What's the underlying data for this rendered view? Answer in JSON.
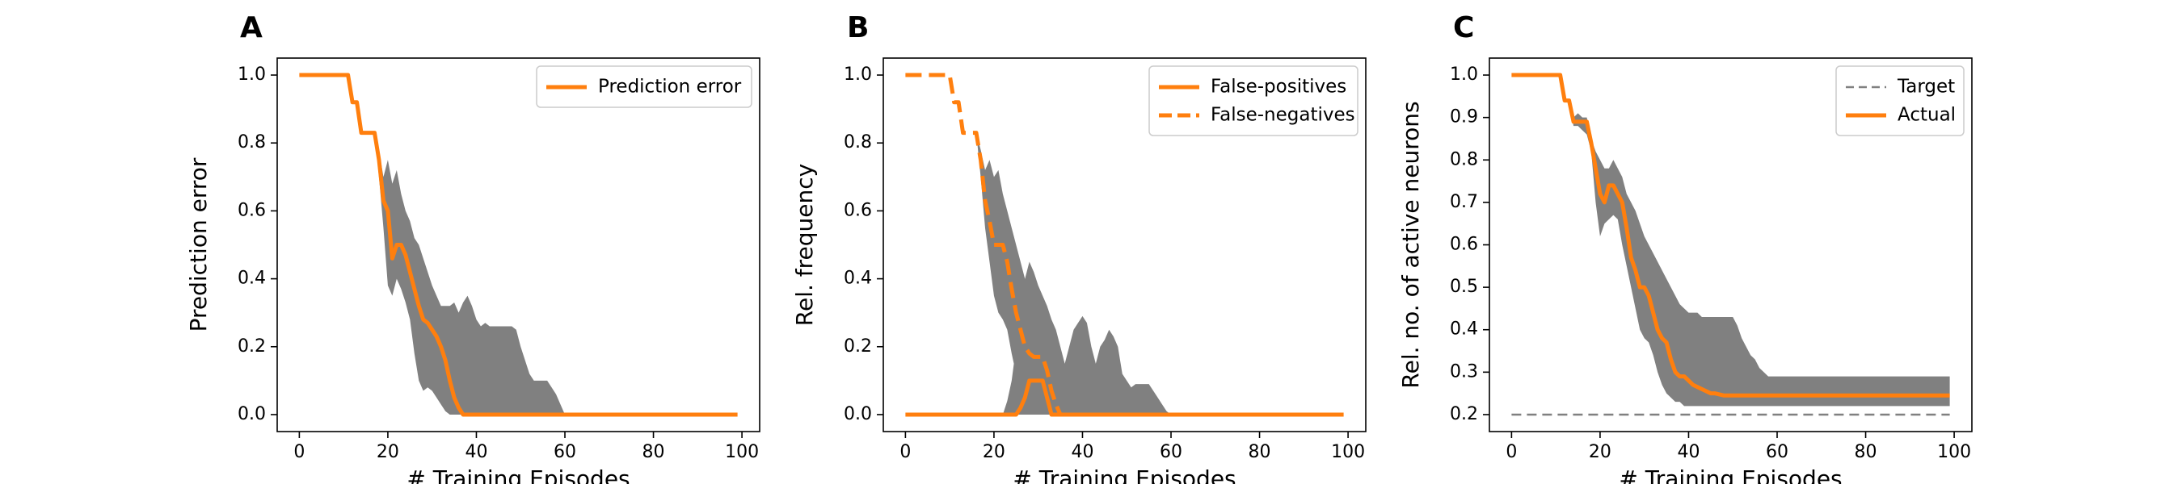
{
  "figure": {
    "colors": {
      "accent": "#ff7f0e",
      "band": "#808080",
      "target": "#808080",
      "axis": "#000000"
    }
  },
  "chart_data": [
    {
      "type": "line",
      "panel_label": "A",
      "xlabel": "# Training Episodes",
      "ylabel": "Prediction error",
      "xlim": [
        -5,
        104
      ],
      "ylim": [
        -0.05,
        1.05
      ],
      "xticks": [
        0,
        20,
        40,
        60,
        80,
        100
      ],
      "xtick_labels": [
        "0",
        "20",
        "40",
        "60",
        "80",
        "100"
      ],
      "yticks": [
        0,
        0.2,
        0.4,
        0.6,
        0.8,
        1.0
      ],
      "ytick_labels": [
        "0.0",
        "0.2",
        "0.4",
        "0.6",
        "0.8",
        "1.0"
      ],
      "legend": {
        "position": "top-right"
      },
      "series": [
        {
          "name": "Prediction error",
          "style": "solid",
          "x": [
            0,
            11,
            12,
            13,
            14,
            15,
            16,
            17,
            18,
            19,
            20,
            21,
            22,
            23,
            24,
            25,
            26,
            27,
            28,
            29,
            30,
            31,
            32,
            33,
            34,
            35,
            36,
            37,
            38,
            39,
            40,
            99
          ],
          "y": [
            1.0,
            1.0,
            0.92,
            0.92,
            0.83,
            0.83,
            0.83,
            0.83,
            0.75,
            0.63,
            0.6,
            0.46,
            0.5,
            0.5,
            0.47,
            0.42,
            0.37,
            0.32,
            0.28,
            0.27,
            0.25,
            0.23,
            0.2,
            0.16,
            0.1,
            0.05,
            0.02,
            0.0,
            0.0,
            0.0,
            0.0,
            0.0
          ]
        }
      ],
      "band": {
        "x": [
          0,
          11,
          12,
          13,
          14,
          15,
          16,
          17,
          18,
          19,
          20,
          21,
          22,
          23,
          24,
          25,
          26,
          27,
          28,
          29,
          30,
          31,
          32,
          33,
          34,
          35,
          36,
          37,
          38,
          39,
          40,
          41,
          42,
          43,
          44,
          45,
          46,
          47,
          48,
          49,
          50,
          51,
          52,
          53,
          54,
          55,
          56,
          57,
          58,
          59,
          60,
          99
        ],
        "upper": [
          1.0,
          1.0,
          0.92,
          0.92,
          0.83,
          0.83,
          0.83,
          0.83,
          0.78,
          0.7,
          0.75,
          0.68,
          0.72,
          0.65,
          0.6,
          0.57,
          0.52,
          0.5,
          0.46,
          0.42,
          0.38,
          0.35,
          0.32,
          0.32,
          0.32,
          0.33,
          0.3,
          0.33,
          0.35,
          0.32,
          0.28,
          0.26,
          0.27,
          0.26,
          0.26,
          0.26,
          0.26,
          0.26,
          0.26,
          0.25,
          0.2,
          0.16,
          0.12,
          0.1,
          0.1,
          0.1,
          0.1,
          0.08,
          0.06,
          0.03,
          0.0,
          0.0
        ],
        "lower": [
          1.0,
          1.0,
          0.92,
          0.92,
          0.83,
          0.83,
          0.83,
          0.83,
          0.7,
          0.55,
          0.38,
          0.35,
          0.4,
          0.37,
          0.33,
          0.28,
          0.18,
          0.1,
          0.07,
          0.08,
          0.07,
          0.05,
          0.03,
          0.01,
          0.0,
          0.0,
          0.0,
          0.0,
          0.0,
          0.0,
          0.0,
          0.0,
          0.0,
          0.0,
          0.0,
          0.0,
          0.0,
          0.0,
          0.0,
          0.0,
          0.0,
          0.0,
          0.0,
          0.0,
          0.0,
          0.0,
          0.0,
          0.0,
          0.0,
          0.0,
          0.0,
          0.0
        ]
      }
    },
    {
      "type": "line",
      "panel_label": "B",
      "xlabel": "# Training Episodes",
      "ylabel": "Rel. frequency",
      "xlim": [
        -5,
        104
      ],
      "ylim": [
        -0.05,
        1.05
      ],
      "xticks": [
        0,
        20,
        40,
        60,
        80,
        100
      ],
      "xtick_labels": [
        "0",
        "20",
        "40",
        "60",
        "80",
        "100"
      ],
      "yticks": [
        0,
        0.2,
        0.4,
        0.6,
        0.8,
        1.0
      ],
      "ytick_labels": [
        "0.0",
        "0.2",
        "0.4",
        "0.6",
        "0.8",
        "1.0"
      ],
      "legend": {
        "position": "top-right"
      },
      "series": [
        {
          "name": "False-positives",
          "style": "solid",
          "x": [
            0,
            24,
            25,
            26,
            27,
            28,
            29,
            30,
            31,
            32,
            33,
            34,
            99
          ],
          "y": [
            0.0,
            0.0,
            0.0,
            0.02,
            0.05,
            0.1,
            0.1,
            0.1,
            0.1,
            0.05,
            0.0,
            0.0,
            0.0
          ],
          "band": {
            "x": [
              0,
              22,
              23,
              24,
              25,
              26,
              27,
              28,
              29,
              30,
              31,
              32,
              33,
              34,
              35,
              36,
              37,
              38,
              39,
              40,
              41,
              42,
              43,
              44,
              45,
              46,
              47,
              48,
              49,
              50,
              51,
              52,
              53,
              54,
              55,
              56,
              57,
              58,
              59,
              60,
              99
            ],
            "upper": [
              0.0,
              0.0,
              0.04,
              0.1,
              0.2,
              0.32,
              0.4,
              0.45,
              0.42,
              0.38,
              0.35,
              0.32,
              0.28,
              0.25,
              0.2,
              0.15,
              0.2,
              0.25,
              0.27,
              0.29,
              0.27,
              0.2,
              0.15,
              0.2,
              0.22,
              0.25,
              0.23,
              0.2,
              0.12,
              0.1,
              0.08,
              0.09,
              0.09,
              0.09,
              0.09,
              0.07,
              0.05,
              0.03,
              0.01,
              0.0,
              0.0
            ],
            "lower": [
              0.0,
              0.0,
              0.0,
              0.0,
              0.0,
              0.0,
              0.0,
              0.0,
              0.0,
              0.0,
              0.0,
              0.0,
              0.0,
              0.0,
              0.0,
              0.0,
              0.0,
              0.0,
              0.0,
              0.0,
              0.0,
              0.0,
              0.0,
              0.0,
              0.0,
              0.0,
              0.0,
              0.0,
              0.0,
              0.0,
              0.0,
              0.0,
              0.0,
              0.0,
              0.0,
              0.0,
              0.0,
              0.0,
              0.0,
              0.0,
              0.0
            ]
          }
        },
        {
          "name": "False-negatives",
          "style": "dashed",
          "x": [
            0,
            10,
            11,
            12,
            13,
            14,
            15,
            16,
            17,
            18,
            19,
            20,
            21,
            22,
            23,
            24,
            25,
            26,
            27,
            28,
            29,
            30,
            31,
            32,
            33,
            34,
            35,
            36,
            37
          ],
          "y": [
            1.0,
            1.0,
            0.92,
            0.92,
            0.83,
            0.83,
            0.83,
            0.83,
            0.75,
            0.63,
            0.57,
            0.5,
            0.5,
            0.5,
            0.45,
            0.37,
            0.3,
            0.25,
            0.2,
            0.18,
            0.17,
            0.17,
            0.17,
            0.13,
            0.07,
            0.03,
            0.0,
            0.0,
            0.0
          ],
          "band": {
            "x": [
              0,
              10,
              11,
              12,
              13,
              14,
              15,
              16,
              17,
              18,
              19,
              20,
              21,
              22,
              23,
              24,
              25,
              26,
              27,
              28,
              29,
              30,
              31,
              32,
              33,
              34,
              35,
              36,
              37
            ],
            "upper": [
              1.0,
              1.0,
              0.92,
              0.92,
              0.83,
              0.83,
              0.83,
              0.83,
              0.78,
              0.72,
              0.75,
              0.7,
              0.72,
              0.65,
              0.6,
              0.55,
              0.5,
              0.45,
              0.4,
              0.35,
              0.32,
              0.3,
              0.25,
              0.2,
              0.14,
              0.08,
              0.02,
              0.0,
              0.0
            ],
            "lower": [
              1.0,
              1.0,
              0.92,
              0.92,
              0.83,
              0.83,
              0.83,
              0.83,
              0.7,
              0.55,
              0.45,
              0.35,
              0.3,
              0.28,
              0.25,
              0.18,
              0.12,
              0.08,
              0.05,
              0.03,
              0.02,
              0.01,
              0.0,
              0.0,
              0.0,
              0.0,
              0.0,
              0.0,
              0.0
            ]
          }
        }
      ]
    },
    {
      "type": "line",
      "panel_label": "C",
      "xlabel": "# Training Episodes",
      "ylabel": "Rel. no. of active neurons",
      "xlim": [
        -5,
        104
      ],
      "ylim": [
        0.16,
        1.04
      ],
      "xticks": [
        0,
        20,
        40,
        60,
        80,
        100
      ],
      "xtick_labels": [
        "0",
        "20",
        "40",
        "60",
        "80",
        "100"
      ],
      "yticks": [
        0.2,
        0.3,
        0.4,
        0.5,
        0.6,
        0.7,
        0.8,
        0.9,
        1.0
      ],
      "ytick_labels": [
        "0.2",
        "0.3",
        "0.4",
        "0.5",
        "0.6",
        "0.7",
        "0.8",
        "0.9",
        "1.0"
      ],
      "legend": {
        "position": "top-right"
      },
      "series": [
        {
          "name": "Target",
          "style": "dashed-thin",
          "x": [
            0,
            99
          ],
          "y": [
            0.2,
            0.2
          ]
        },
        {
          "name": "Actual",
          "style": "solid",
          "x": [
            0,
            11,
            12,
            13,
            14,
            15,
            16,
            17,
            18,
            19,
            20,
            21,
            22,
            23,
            24,
            25,
            26,
            27,
            28,
            29,
            30,
            31,
            32,
            33,
            34,
            35,
            36,
            37,
            38,
            39,
            40,
            41,
            42,
            43,
            44,
            45,
            46,
            48,
            50,
            52,
            54,
            56,
            58,
            60,
            99
          ],
          "y": [
            1.0,
            1.0,
            0.94,
            0.94,
            0.89,
            0.89,
            0.89,
            0.89,
            0.84,
            0.78,
            0.72,
            0.7,
            0.74,
            0.74,
            0.72,
            0.7,
            0.64,
            0.57,
            0.54,
            0.5,
            0.5,
            0.48,
            0.44,
            0.4,
            0.38,
            0.37,
            0.33,
            0.3,
            0.29,
            0.29,
            0.28,
            0.27,
            0.265,
            0.26,
            0.255,
            0.25,
            0.25,
            0.245,
            0.245,
            0.245,
            0.245,
            0.245,
            0.245,
            0.245,
            0.245
          ]
        }
      ],
      "band": {
        "x": [
          0,
          11,
          12,
          13,
          14,
          15,
          16,
          17,
          18,
          19,
          20,
          21,
          22,
          23,
          24,
          25,
          26,
          27,
          28,
          29,
          30,
          31,
          32,
          33,
          34,
          35,
          36,
          37,
          38,
          39,
          40,
          41,
          42,
          43,
          44,
          45,
          46,
          47,
          48,
          49,
          50,
          51,
          52,
          53,
          54,
          55,
          56,
          57,
          58,
          59,
          60,
          99
        ],
        "upper": [
          1.0,
          1.0,
          0.94,
          0.94,
          0.9,
          0.91,
          0.9,
          0.9,
          0.85,
          0.82,
          0.8,
          0.78,
          0.78,
          0.8,
          0.78,
          0.76,
          0.72,
          0.7,
          0.68,
          0.65,
          0.62,
          0.6,
          0.58,
          0.56,
          0.54,
          0.52,
          0.5,
          0.48,
          0.46,
          0.45,
          0.44,
          0.44,
          0.44,
          0.43,
          0.43,
          0.43,
          0.43,
          0.43,
          0.43,
          0.43,
          0.43,
          0.41,
          0.38,
          0.36,
          0.34,
          0.33,
          0.31,
          0.3,
          0.29,
          0.29,
          0.29,
          0.29
        ],
        "lower": [
          1.0,
          1.0,
          0.94,
          0.94,
          0.88,
          0.88,
          0.87,
          0.86,
          0.82,
          0.7,
          0.62,
          0.65,
          0.66,
          0.67,
          0.66,
          0.6,
          0.55,
          0.5,
          0.45,
          0.4,
          0.38,
          0.37,
          0.34,
          0.3,
          0.27,
          0.25,
          0.24,
          0.23,
          0.23,
          0.22,
          0.22,
          0.22,
          0.22,
          0.22,
          0.22,
          0.22,
          0.22,
          0.22,
          0.22,
          0.22,
          0.22,
          0.22,
          0.22,
          0.22,
          0.22,
          0.22,
          0.22,
          0.22,
          0.22,
          0.22,
          0.22,
          0.22
        ]
      }
    }
  ]
}
